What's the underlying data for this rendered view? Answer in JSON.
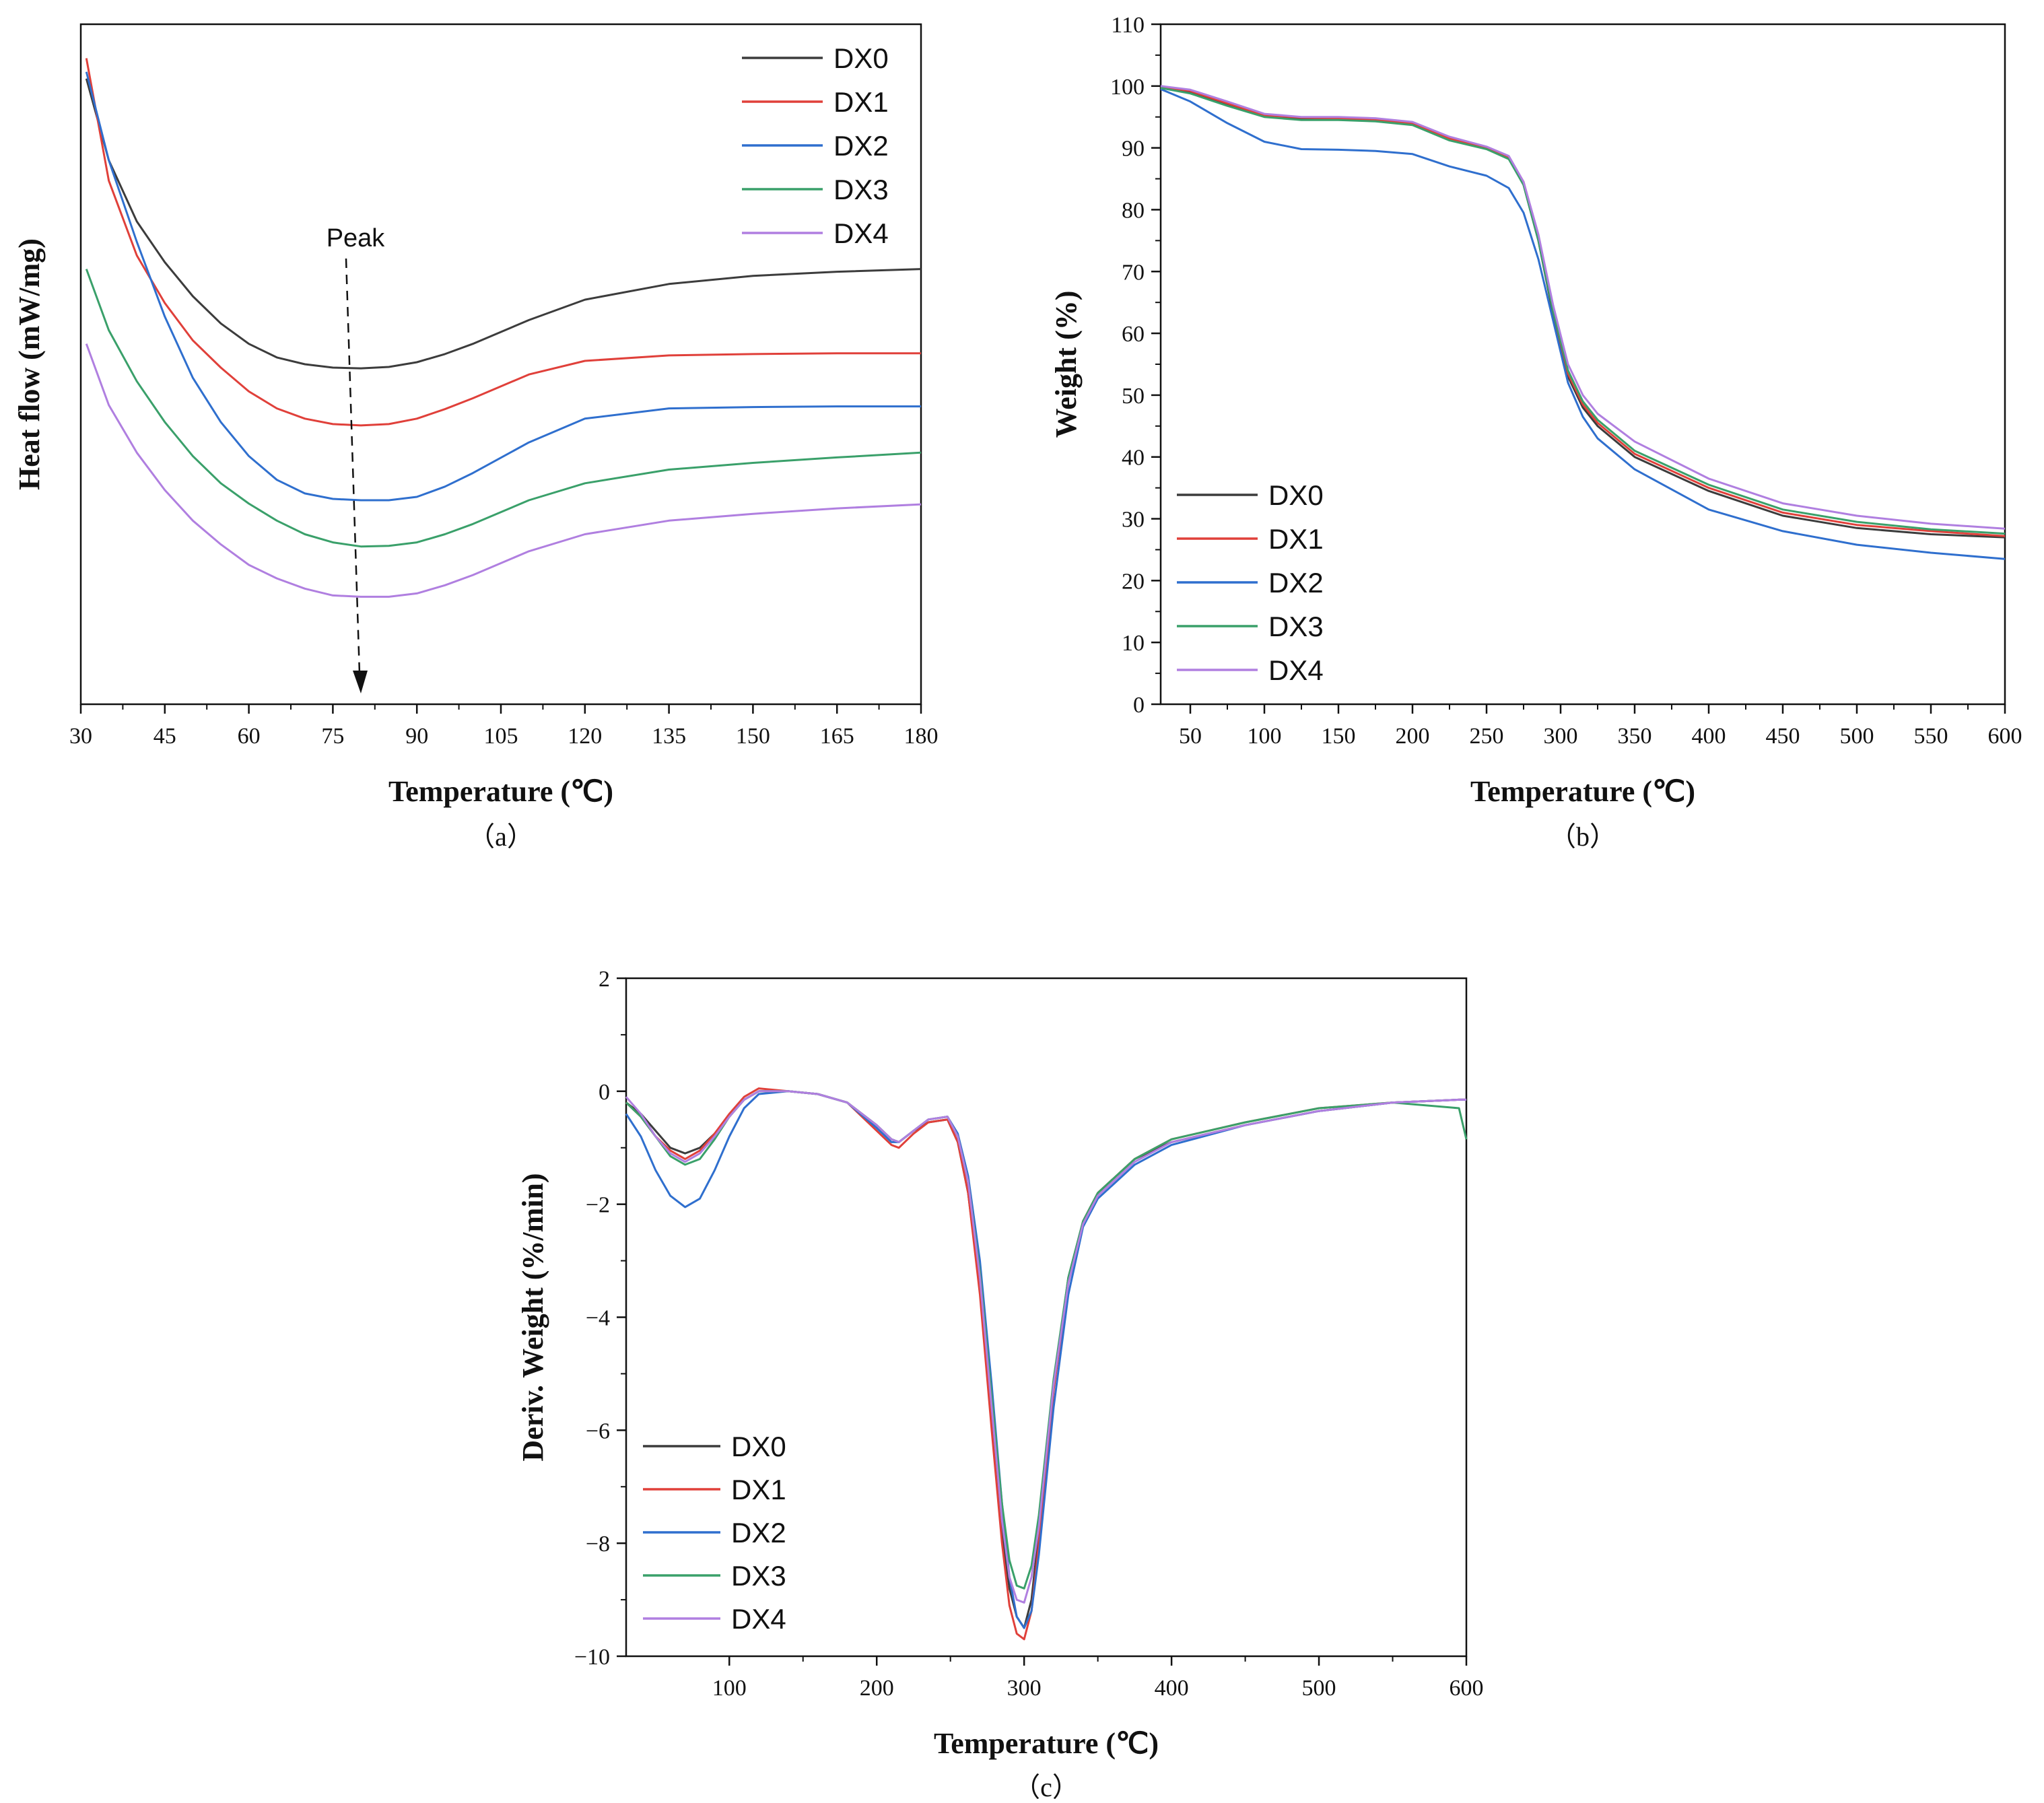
{
  "figure": {
    "series_colors": {
      "DX0": "#3c3c3c",
      "DX1": "#e0403a",
      "DX2": "#2f6fce",
      "DX3": "#3aa06a",
      "DX4": "#b07fe0"
    },
    "series_names": [
      "DX0",
      "DX1",
      "DX2",
      "DX3",
      "DX4"
    ]
  },
  "chart_data": [
    {
      "id": "a",
      "type": "line",
      "caption": "（a）",
      "xlabel": "Temperature (℃)",
      "ylabel": "Heat flow (mW/mg)",
      "xlim": [
        30,
        180
      ],
      "xticks": [
        30,
        45,
        60,
        75,
        90,
        105,
        120,
        135,
        150,
        165,
        180
      ],
      "y_unlabeled": true,
      "ylim": [
        0,
        100
      ],
      "legend_position": "top-right",
      "annotation": {
        "text": "Peak",
        "x": 80
      },
      "series": [
        {
          "name": "DX0",
          "x": [
            31,
            35,
            40,
            45,
            50,
            55,
            60,
            65,
            70,
            75,
            80,
            85,
            90,
            95,
            100,
            110,
            120,
            135,
            150,
            165,
            180
          ],
          "y": [
            92,
            80,
            71,
            65,
            60,
            56,
            53,
            51,
            50,
            49.5,
            49.4,
            49.6,
            50.3,
            51.5,
            53,
            56.5,
            59.5,
            61.8,
            63,
            63.6,
            64
          ]
        },
        {
          "name": "DX1",
          "x": [
            31,
            35,
            40,
            45,
            50,
            55,
            60,
            65,
            70,
            75,
            80,
            85,
            90,
            95,
            100,
            110,
            120,
            135,
            150,
            165,
            180
          ],
          "y": [
            95,
            77,
            66,
            59,
            53.5,
            49.5,
            46,
            43.5,
            42,
            41.2,
            41,
            41.2,
            42,
            43.4,
            45,
            48.5,
            50.5,
            51.3,
            51.5,
            51.6,
            51.6
          ]
        },
        {
          "name": "DX2",
          "x": [
            31,
            35,
            40,
            45,
            50,
            55,
            60,
            65,
            70,
            75,
            80,
            85,
            90,
            95,
            100,
            110,
            120,
            135,
            150,
            165,
            180
          ],
          "y": [
            93,
            80,
            68,
            57,
            48,
            41.5,
            36.5,
            33,
            31,
            30.2,
            30,
            30,
            30.5,
            32,
            34,
            38.5,
            42,
            43.5,
            43.7,
            43.8,
            43.8
          ]
        },
        {
          "name": "DX3",
          "x": [
            31,
            35,
            40,
            45,
            50,
            55,
            60,
            65,
            70,
            75,
            80,
            85,
            90,
            95,
            100,
            110,
            120,
            135,
            150,
            165,
            180
          ],
          "y": [
            64,
            55,
            47.5,
            41.5,
            36.5,
            32.5,
            29.5,
            27,
            25,
            23.8,
            23.2,
            23.3,
            23.8,
            25,
            26.5,
            30,
            32.5,
            34.5,
            35.5,
            36.3,
            37
          ]
        },
        {
          "name": "DX4",
          "x": [
            31,
            35,
            40,
            45,
            50,
            55,
            60,
            65,
            70,
            75,
            80,
            85,
            90,
            95,
            100,
            110,
            120,
            135,
            150,
            165,
            180
          ],
          "y": [
            53,
            44,
            37,
            31.5,
            27,
            23.5,
            20.5,
            18.5,
            17,
            16,
            15.8,
            15.8,
            16.3,
            17.5,
            19,
            22.5,
            25,
            27,
            28,
            28.8,
            29.4
          ]
        }
      ]
    },
    {
      "id": "b",
      "type": "line",
      "caption": "（b）",
      "xlabel": "Temperature (℃)",
      "ylabel": "Weight (%)",
      "xlim": [
        30,
        600
      ],
      "xticks": [
        50,
        100,
        150,
        200,
        250,
        300,
        350,
        400,
        450,
        500,
        550,
        600
      ],
      "ylim": [
        0,
        110
      ],
      "yticks": [
        0,
        10,
        20,
        30,
        40,
        50,
        60,
        70,
        80,
        90,
        100,
        110
      ],
      "legend_position": "bottom-left",
      "series": [
        {
          "name": "DX0",
          "x": [
            30,
            50,
            75,
            100,
            125,
            150,
            175,
            200,
            225,
            250,
            265,
            275,
            285,
            295,
            305,
            315,
            325,
            350,
            400,
            450,
            500,
            550,
            600
          ],
          "y": [
            99.8,
            99,
            97,
            95.2,
            94.8,
            94.8,
            94.6,
            94,
            91.5,
            90,
            88.5,
            84,
            75,
            63,
            53,
            48,
            45,
            40,
            34.5,
            30.5,
            28.5,
            27.5,
            27
          ]
        },
        {
          "name": "DX1",
          "x": [
            30,
            50,
            75,
            100,
            125,
            150,
            175,
            200,
            225,
            250,
            265,
            275,
            285,
            295,
            305,
            315,
            325,
            350,
            400,
            450,
            500,
            550,
            600
          ],
          "y": [
            99.9,
            99.2,
            97.2,
            95.3,
            94.9,
            94.8,
            94.6,
            94,
            91.5,
            90,
            88.5,
            84.5,
            75.5,
            63.5,
            53.5,
            48.5,
            45.5,
            40.5,
            35,
            31,
            29,
            28,
            27.2
          ]
        },
        {
          "name": "DX2",
          "x": [
            30,
            50,
            75,
            100,
            125,
            150,
            175,
            200,
            225,
            250,
            265,
            275,
            285,
            295,
            305,
            315,
            325,
            350,
            400,
            450,
            500,
            550,
            600
          ],
          "y": [
            99.5,
            97.5,
            94,
            91,
            89.8,
            89.7,
            89.5,
            89,
            87,
            85.5,
            83.5,
            79.5,
            72,
            62,
            52,
            46.5,
            43,
            38,
            31.5,
            28,
            25.8,
            24.5,
            23.5
          ]
        },
        {
          "name": "DX3",
          "x": [
            30,
            50,
            75,
            100,
            125,
            150,
            175,
            200,
            225,
            250,
            265,
            275,
            285,
            295,
            305,
            315,
            325,
            350,
            400,
            450,
            500,
            550,
            600
          ],
          "y": [
            99.7,
            98.8,
            96.8,
            95,
            94.5,
            94.5,
            94.3,
            93.7,
            91.2,
            89.8,
            88.2,
            84,
            75,
            63.5,
            54,
            49,
            46,
            41,
            35.5,
            31.5,
            29.5,
            28.3,
            27.6
          ]
        },
        {
          "name": "DX4",
          "x": [
            30,
            50,
            75,
            100,
            125,
            150,
            175,
            200,
            225,
            250,
            265,
            275,
            285,
            295,
            305,
            315,
            325,
            350,
            400,
            450,
            500,
            550,
            600
          ],
          "y": [
            100,
            99.4,
            97.5,
            95.5,
            95,
            95,
            94.8,
            94.2,
            91.8,
            90.2,
            88.7,
            84.5,
            76,
            64.5,
            55,
            50,
            47,
            42.5,
            36.5,
            32.5,
            30.5,
            29.2,
            28.4
          ]
        }
      ]
    },
    {
      "id": "c",
      "type": "line",
      "caption": "（c）",
      "xlabel": "Temperature (℃)",
      "ylabel": "Deriv. Weight (%/min)",
      "xlim": [
        30,
        600
      ],
      "xticks": [
        100,
        200,
        300,
        400,
        500,
        600
      ],
      "ylim": [
        -10,
        2
      ],
      "yticks": [
        -10,
        -8,
        -6,
        -4,
        -2,
        0,
        2
      ],
      "ytick_labels": [
        "−10",
        "−8",
        "−6",
        "−4",
        "−2",
        "0",
        "2"
      ],
      "legend_position": "bottom-left",
      "series": [
        {
          "name": "DX0",
          "x": [
            30,
            40,
            50,
            60,
            70,
            80,
            90,
            100,
            110,
            120,
            140,
            160,
            180,
            200,
            210,
            215,
            225,
            235,
            248,
            255,
            262,
            270,
            278,
            285,
            290,
            295,
            300,
            305,
            310,
            320,
            330,
            340,
            350,
            375,
            400,
            450,
            500,
            550,
            595,
            600
          ],
          "y": [
            -0.2,
            -0.4,
            -0.7,
            -1,
            -1.1,
            -1,
            -0.75,
            -0.45,
            -0.15,
            0,
            0,
            -0.05,
            -0.2,
            -0.6,
            -0.85,
            -0.9,
            -0.7,
            -0.55,
            -0.5,
            -0.9,
            -1.8,
            -3.5,
            -5.8,
            -7.8,
            -8.8,
            -9.3,
            -9.5,
            -9,
            -7.8,
            -5.2,
            -3.3,
            -2.3,
            -1.8,
            -1.2,
            -0.9,
            -0.6,
            -0.35,
            -0.2,
            -0.15,
            -0.15
          ]
        },
        {
          "name": "DX1",
          "x": [
            30,
            40,
            50,
            60,
            70,
            80,
            90,
            100,
            110,
            120,
            140,
            160,
            180,
            200,
            210,
            215,
            225,
            235,
            248,
            255,
            262,
            270,
            278,
            285,
            290,
            295,
            300,
            305,
            310,
            320,
            330,
            340,
            350,
            375,
            400,
            450,
            500,
            550,
            595,
            600
          ],
          "y": [
            -0.2,
            -0.45,
            -0.8,
            -1.05,
            -1.2,
            -1.05,
            -0.75,
            -0.4,
            -0.1,
            0.05,
            0,
            -0.05,
            -0.2,
            -0.7,
            -0.95,
            -1,
            -0.75,
            -0.55,
            -0.5,
            -0.9,
            -1.8,
            -3.6,
            -6,
            -8,
            -9.1,
            -9.6,
            -9.7,
            -9.2,
            -8,
            -5.3,
            -3.4,
            -2.3,
            -1.8,
            -1.2,
            -0.85,
            -0.55,
            -0.3,
            -0.2,
            -0.15,
            -0.15
          ]
        },
        {
          "name": "DX2",
          "x": [
            30,
            40,
            50,
            60,
            70,
            80,
            90,
            100,
            110,
            120,
            140,
            160,
            180,
            200,
            210,
            215,
            225,
            235,
            248,
            255,
            262,
            270,
            278,
            285,
            290,
            295,
            300,
            305,
            310,
            320,
            330,
            340,
            350,
            375,
            400,
            450,
            500,
            550,
            595,
            600
          ],
          "y": [
            -0.4,
            -0.8,
            -1.4,
            -1.85,
            -2.05,
            -1.9,
            -1.4,
            -0.8,
            -0.3,
            -0.05,
            0,
            -0.05,
            -0.2,
            -0.65,
            -0.9,
            -0.9,
            -0.7,
            -0.5,
            -0.45,
            -0.75,
            -1.5,
            -3,
            -5.2,
            -7.3,
            -8.6,
            -9.3,
            -9.5,
            -9.2,
            -8.2,
            -5.6,
            -3.6,
            -2.4,
            -1.9,
            -1.3,
            -0.95,
            -0.6,
            -0.35,
            -0.2,
            -0.15,
            -0.15
          ]
        },
        {
          "name": "DX3",
          "x": [
            30,
            40,
            50,
            60,
            70,
            80,
            90,
            100,
            110,
            120,
            140,
            160,
            180,
            200,
            210,
            215,
            225,
            235,
            248,
            255,
            262,
            270,
            278,
            285,
            290,
            295,
            300,
            305,
            310,
            320,
            330,
            340,
            350,
            375,
            400,
            450,
            500,
            550,
            595,
            600
          ],
          "y": [
            -0.2,
            -0.45,
            -0.8,
            -1.15,
            -1.3,
            -1.2,
            -0.85,
            -0.45,
            -0.15,
            0,
            0,
            -0.05,
            -0.2,
            -0.6,
            -0.85,
            -0.9,
            -0.7,
            -0.5,
            -0.45,
            -0.8,
            -1.6,
            -3.2,
            -5.4,
            -7.3,
            -8.3,
            -8.75,
            -8.8,
            -8.4,
            -7.5,
            -5.1,
            -3.3,
            -2.3,
            -1.8,
            -1.2,
            -0.85,
            -0.55,
            -0.3,
            -0.2,
            -0.3,
            -0.85
          ]
        },
        {
          "name": "DX4",
          "x": [
            30,
            40,
            50,
            60,
            70,
            80,
            90,
            100,
            110,
            120,
            140,
            160,
            180,
            200,
            210,
            215,
            225,
            235,
            248,
            255,
            262,
            270,
            278,
            285,
            290,
            295,
            300,
            305,
            310,
            320,
            330,
            340,
            350,
            375,
            400,
            450,
            500,
            550,
            595,
            600
          ],
          "y": [
            -0.1,
            -0.4,
            -0.8,
            -1.1,
            -1.25,
            -1.1,
            -0.8,
            -0.45,
            -0.15,
            0,
            0,
            -0.05,
            -0.2,
            -0.6,
            -0.85,
            -0.9,
            -0.7,
            -0.5,
            -0.45,
            -0.8,
            -1.6,
            -3.3,
            -5.6,
            -7.6,
            -8.6,
            -9,
            -9.05,
            -8.6,
            -7.7,
            -5.2,
            -3.4,
            -2.35,
            -1.85,
            -1.25,
            -0.9,
            -0.6,
            -0.35,
            -0.2,
            -0.15,
            -0.15
          ]
        }
      ]
    }
  ]
}
